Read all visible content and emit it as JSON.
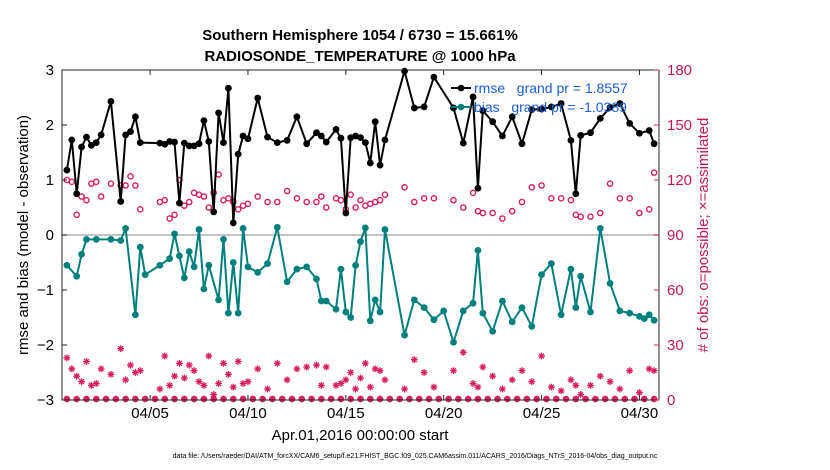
{
  "chart_data": {
    "type": "line",
    "title_line1": "Southern Hemisphere 1054 / 6730 = 15.661%",
    "title_line2": "RADIOSONDE_TEMPERATURE @ 1000 hPa",
    "xlabel": "Apr.01,2016 00:00:00 start",
    "ylabel": "rmse and bias (model - observation)",
    "ylabel_right": "# of obs: o=possible; ×=assimilated",
    "footer": "data file: /Users/raeder/DAI/ATM_forcXX/CAM6_setup/f.e21.FHIST_BGC.f09_025.CAM6assim.011/ACARS_2016/Diags_NTrS_2016-04/obs_diag_output.nc",
    "xlim": [
      0.5,
      31.0
    ],
    "ylim": [
      -3,
      3
    ],
    "ylim_right": [
      0,
      180
    ],
    "x_ticks": [
      5,
      10,
      15,
      20,
      25,
      30
    ],
    "x_tick_labels": [
      "04/05",
      "04/10",
      "04/15",
      "04/20",
      "04/25",
      "04/30"
    ],
    "y_ticks": [
      -3,
      -2,
      -1,
      0,
      1,
      2,
      3
    ],
    "y_tick_labels": [
      "−3",
      "−2",
      "−1",
      "0",
      "1",
      "2",
      "3"
    ],
    "y_right_ticks": [
      0,
      30,
      60,
      90,
      120,
      150,
      180
    ],
    "y_right_tick_labels": [
      "0",
      "30",
      "60",
      "90",
      "120",
      "150",
      "180"
    ],
    "colors": {
      "rmse": "#000000",
      "bias": "#00807c",
      "obs": "#d81b60",
      "zero_line": "#b0b0b0",
      "legend_text": "#1a5fd6"
    },
    "series": [
      {
        "name": "rmse",
        "legend": "rmse   grand pr = 1.8557",
        "x": [
          0.75,
          1.0,
          1.25,
          1.5,
          1.75,
          2.0,
          2.25,
          2.5,
          3.0,
          3.5,
          3.75,
          4.0,
          4.25,
          4.5,
          5.5,
          5.75,
          6.0,
          6.25,
          6.5,
          6.75,
          7.0,
          7.25,
          7.5,
          7.75,
          8.0,
          8.25,
          8.5,
          8.75,
          9.0,
          9.25,
          9.5,
          9.75,
          10.0,
          10.5,
          11.0,
          11.5,
          12.0,
          12.5,
          13.0,
          13.5,
          13.75,
          14.0,
          14.5,
          14.75,
          15.0,
          15.25,
          15.5,
          15.75,
          16.0,
          16.25,
          16.5,
          16.75,
          17.0,
          18.0,
          18.5,
          19.0,
          19.5,
          20.5,
          21.0,
          21.5,
          21.75,
          22.0,
          22.5,
          23.0,
          23.5,
          24.0,
          24.5,
          25.0,
          25.5,
          26.0,
          26.5,
          26.75,
          27.0,
          27.5,
          28.0,
          28.5,
          29.0,
          29.5,
          30.0,
          30.5,
          30.75
        ],
        "y": [
          1.18,
          1.73,
          0.75,
          1.6,
          1.78,
          1.63,
          1.68,
          1.82,
          2.43,
          0.61,
          1.82,
          1.88,
          2.15,
          1.68,
          1.67,
          1.65,
          1.7,
          1.69,
          0.58,
          1.67,
          1.62,
          1.62,
          1.66,
          2.08,
          1.7,
          0.42,
          2.22,
          1.68,
          2.67,
          0.22,
          1.47,
          1.8,
          1.75,
          2.49,
          1.78,
          1.68,
          1.72,
          2.15,
          1.66,
          1.86,
          1.8,
          1.69,
          1.92,
          1.76,
          0.4,
          1.77,
          1.8,
          1.77,
          1.68,
          1.31,
          2.06,
          1.27,
          1.73,
          2.98,
          2.31,
          2.33,
          2.87,
          2.31,
          1.67,
          2.51,
          0.85,
          2.26,
          2.06,
          1.8,
          2.15,
          1.66,
          2.28,
          2.29,
          2.33,
          2.39,
          1.72,
          0.75,
          1.81,
          1.86,
          2.12,
          2.32,
          2.39,
          2.03,
          1.85,
          1.9,
          1.66
        ]
      },
      {
        "name": "bias",
        "legend": "bias   grand pr = -1.0389",
        "x": [
          0.75,
          1.25,
          1.5,
          1.75,
          2.25,
          3.0,
          3.5,
          3.75,
          4.25,
          4.5,
          4.75,
          5.5,
          6.0,
          6.25,
          6.5,
          6.75,
          7.0,
          7.25,
          7.5,
          7.75,
          8.0,
          8.5,
          8.75,
          9.0,
          9.25,
          9.5,
          9.75,
          10.0,
          10.5,
          11.0,
          11.5,
          12.0,
          12.5,
          13.0,
          13.5,
          13.75,
          14.0,
          14.5,
          14.75,
          15.0,
          15.25,
          15.5,
          15.75,
          16.0,
          16.25,
          16.5,
          16.75,
          17.0,
          18.0,
          18.5,
          19.0,
          19.5,
          20.0,
          20.5,
          21.0,
          21.5,
          21.75,
          22.0,
          22.5,
          23.0,
          23.5,
          24.0,
          24.5,
          25.0,
          25.5,
          26.0,
          26.5,
          26.75,
          27.0,
          27.5,
          28.0,
          28.5,
          29.0,
          29.5,
          30.0,
          30.25,
          30.5,
          30.75
        ],
        "y": [
          -0.55,
          -0.75,
          -0.35,
          -0.08,
          -0.08,
          -0.08,
          -0.1,
          0.12,
          -1.45,
          -0.22,
          -0.72,
          -0.55,
          -0.43,
          0.02,
          -0.38,
          -0.78,
          -0.3,
          -0.58,
          0.1,
          -0.98,
          -0.55,
          -1.18,
          -0.08,
          -1.42,
          -0.5,
          -1.42,
          0.12,
          -0.58,
          -0.68,
          -0.52,
          0.14,
          -0.85,
          -0.62,
          -0.58,
          -0.8,
          -1.2,
          -1.2,
          -1.35,
          -0.62,
          -1.4,
          -1.5,
          -0.55,
          -0.12,
          0.13,
          -1.56,
          -1.18,
          -1.4,
          0.1,
          -1.82,
          -1.18,
          -1.32,
          -1.54,
          -1.38,
          -1.95,
          -1.38,
          -1.24,
          -0.28,
          -1.42,
          -1.75,
          -1.2,
          -1.58,
          -1.32,
          -1.66,
          -0.72,
          -0.52,
          -1.45,
          -0.62,
          -1.32,
          -0.75,
          -1.4,
          0.12,
          -0.88,
          -1.38,
          -1.42,
          -1.48,
          -1.52,
          -1.45,
          -1.55
        ]
      },
      {
        "name": "obs possible",
        "marker": "circle",
        "axis": "right",
        "x": [
          0.75,
          1.0,
          1.25,
          1.5,
          1.75,
          2.0,
          2.25,
          2.5,
          3.0,
          3.5,
          3.75,
          4.0,
          4.25,
          4.5,
          5.5,
          5.75,
          6.0,
          6.25,
          6.5,
          6.75,
          7.0,
          7.25,
          7.5,
          7.75,
          8.0,
          8.25,
          8.5,
          8.75,
          9.0,
          9.25,
          9.5,
          9.75,
          10.0,
          10.5,
          11.0,
          11.5,
          12.0,
          12.5,
          13.0,
          13.5,
          13.75,
          14.0,
          14.5,
          14.75,
          15.0,
          15.25,
          15.5,
          15.75,
          16.0,
          16.25,
          16.5,
          16.75,
          17.0,
          18.0,
          18.5,
          19.0,
          19.5,
          20.5,
          21.0,
          21.5,
          21.75,
          22.0,
          22.5,
          23.0,
          23.5,
          24.0,
          24.5,
          25.0,
          25.5,
          26.0,
          26.5,
          26.75,
          27.0,
          27.5,
          28.0,
          28.5,
          29.0,
          29.5,
          30.0,
          30.5,
          30.75
        ],
        "y": [
          120,
          119,
          101,
          111,
          109,
          118,
          119,
          111,
          118,
          117,
          117,
          122,
          117,
          104,
          108,
          109,
          99,
          101,
          120,
          106,
          108,
          113,
          112,
          111,
          105,
          113,
          123,
          109,
          110,
          108,
          104,
          106,
          107,
          111,
          108,
          108,
          114,
          110,
          108,
          108,
          111,
          105,
          110,
          109,
          104,
          112,
          105,
          109,
          106,
          107,
          108,
          109,
          112,
          116,
          108,
          110,
          110,
          109,
          105,
          113,
          103,
          102,
          102,
          99,
          103,
          108,
          116,
          117,
          110,
          110,
          109,
          101,
          100,
          100,
          102,
          118,
          110,
          110,
          102,
          104,
          124
        ]
      },
      {
        "name": "obs assimilated",
        "marker": "asterisk",
        "axis": "right",
        "x": [
          0.75,
          1.0,
          1.25,
          1.5,
          1.75,
          2.0,
          2.25,
          2.5,
          3.0,
          3.5,
          3.75,
          4.0,
          4.25,
          4.5,
          5.5,
          5.75,
          6.0,
          6.25,
          6.5,
          6.75,
          7.0,
          7.25,
          7.5,
          7.75,
          8.0,
          8.25,
          8.5,
          8.75,
          9.0,
          9.25,
          9.5,
          9.75,
          10.0,
          10.5,
          11.0,
          11.5,
          12.0,
          12.5,
          13.0,
          13.5,
          13.75,
          14.0,
          14.5,
          14.75,
          15.0,
          15.25,
          15.5,
          15.75,
          16.0,
          16.25,
          16.5,
          16.75,
          17.0,
          18.0,
          18.5,
          19.0,
          19.5,
          20.5,
          21.0,
          21.5,
          21.75,
          22.0,
          22.5,
          23.0,
          23.5,
          24.0,
          24.5,
          25.0,
          25.5,
          26.0,
          26.5,
          26.75,
          27.0,
          27.5,
          28.0,
          28.5,
          29.0,
          29.5,
          30.0,
          30.5,
          30.75
        ],
        "y": [
          23,
          17,
          13,
          10,
          21,
          8,
          9,
          17,
          14,
          28,
          11,
          19,
          15,
          16,
          6,
          24,
          8,
          13,
          20,
          12,
          19,
          16,
          10,
          8,
          24,
          3,
          9,
          20,
          14,
          7,
          21,
          9,
          10,
          17,
          6,
          20,
          11,
          17,
          18,
          19,
          8,
          18,
          8,
          9,
          11,
          15,
          6,
          12,
          20,
          7,
          17,
          16,
          11,
          6,
          22,
          15,
          7,
          16,
          26,
          9,
          7,
          18,
          13,
          6,
          11,
          16,
          10,
          24,
          7,
          5,
          11,
          8,
          3,
          8,
          13,
          10,
          6,
          16,
          4,
          17,
          16
        ]
      },
      {
        "name": "obs zero",
        "marker": "asterisk-circle",
        "axis": "right",
        "x": [
          0.75,
          1.25,
          1.75,
          2.25,
          2.75,
          3.25,
          3.75,
          4.25,
          4.75,
          5.25,
          5.75,
          6.25,
          6.75,
          7.25,
          7.75,
          8.25,
          8.75,
          9.25,
          9.75,
          10.25,
          10.75,
          11.25,
          11.75,
          12.25,
          12.75,
          13.25,
          13.75,
          14.25,
          14.75,
          15.25,
          15.75,
          16.25,
          16.75,
          17.25,
          17.75,
          18.25,
          18.75,
          19.25,
          19.75,
          20.25,
          20.75,
          21.25,
          21.75,
          22.25,
          22.75,
          23.25,
          23.75,
          24.25,
          24.75,
          25.25,
          25.75,
          26.25,
          26.75,
          27.25,
          27.75,
          28.25,
          28.75,
          29.25,
          29.75,
          30.25,
          30.75
        ],
        "y": [
          0,
          0,
          0,
          0,
          0,
          0,
          0,
          0,
          0,
          0,
          0,
          0,
          0,
          0,
          0,
          0,
          0,
          0,
          0,
          0,
          0,
          0,
          0,
          0,
          0,
          0,
          0,
          0,
          0,
          0,
          0,
          0,
          0,
          0,
          0,
          0,
          0,
          0,
          0,
          0,
          0,
          0,
          0,
          0,
          0,
          0,
          0,
          0,
          0,
          0,
          0,
          0,
          0,
          0,
          0,
          0,
          0,
          0,
          0,
          0,
          0
        ]
      }
    ]
  }
}
